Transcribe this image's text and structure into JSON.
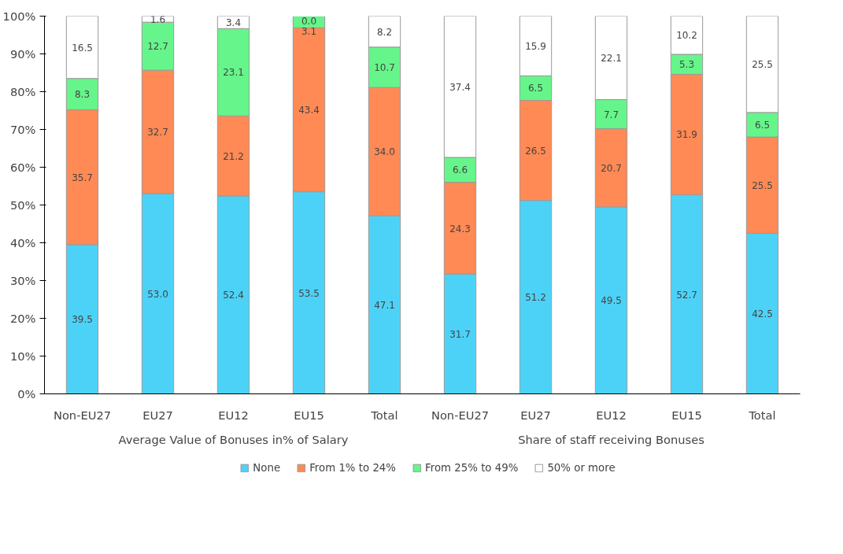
{
  "chart_data": {
    "type": "bar",
    "stacked": true,
    "categories": [
      "Non-EU27",
      "EU27",
      "EU12",
      "EU15",
      "Total",
      "Non-EU27",
      "EU27",
      "EU12",
      "EU15",
      "Total"
    ],
    "annotations": [
      "Average Value of Bonuses in% of Salary",
      "Share of staff receiving Bonuses"
    ],
    "series": [
      {
        "name": "None",
        "color": "#4dd2f7",
        "values": [
          39.5,
          53.0,
          52.4,
          53.5,
          47.1,
          31.7,
          51.2,
          49.5,
          52.7,
          42.5
        ],
        "value_labels": [
          "39.5",
          "53.0",
          "52.4",
          "53.5",
          "47.1",
          "31.7",
          "51.2",
          "49.5",
          "52.7",
          "42.5"
        ]
      },
      {
        "name": "From 1% to 24%",
        "color": "#ff8a55",
        "values": [
          35.7,
          32.7,
          21.2,
          43.4,
          34.0,
          24.3,
          26.5,
          20.7,
          31.9,
          25.5
        ],
        "value_labels": [
          "35.7",
          "32.7",
          "21.2",
          "43.4",
          "34.0",
          "24.3",
          "26.5",
          "20.7",
          "31.9",
          "25.5"
        ]
      },
      {
        "name": "From 25% to 49%",
        "color": "#66f58a",
        "values": [
          8.3,
          12.7,
          23.1,
          3.1,
          10.7,
          6.6,
          6.5,
          7.7,
          5.3,
          6.5
        ],
        "value_labels": [
          "8.3",
          "12.7",
          "23.1",
          "3.1",
          "10.7",
          "6.6",
          "6.5",
          "7.7",
          "5.3",
          "6.5"
        ]
      },
      {
        "name": "50% or more",
        "color": "#ffffff",
        "values": [
          16.5,
          1.6,
          3.4,
          0.0,
          8.2,
          37.4,
          15.9,
          22.1,
          10.2,
          25.5
        ],
        "value_labels": [
          "16.5",
          "1.6",
          "3.4",
          "0.0",
          "8.2",
          "37.4",
          "15.9",
          "22.1",
          "10.2",
          "25.5"
        ]
      }
    ],
    "ylim": [
      0,
      100
    ],
    "yticks": [
      {
        "value": 0,
        "label": "0%"
      },
      {
        "value": 10,
        "label": "10%"
      },
      {
        "value": 20,
        "label": "20%"
      },
      {
        "value": 30,
        "label": "30%"
      },
      {
        "value": 40,
        "label": "40%"
      },
      {
        "value": 50,
        "label": "50%"
      },
      {
        "value": 60,
        "label": "60%"
      },
      {
        "value": 70,
        "label": "70%"
      },
      {
        "value": 80,
        "label": "80%"
      },
      {
        "value": 90,
        "label": "90%"
      },
      {
        "value": 100,
        "label": "100%"
      }
    ],
    "legend": "bottom",
    "grid": false
  }
}
